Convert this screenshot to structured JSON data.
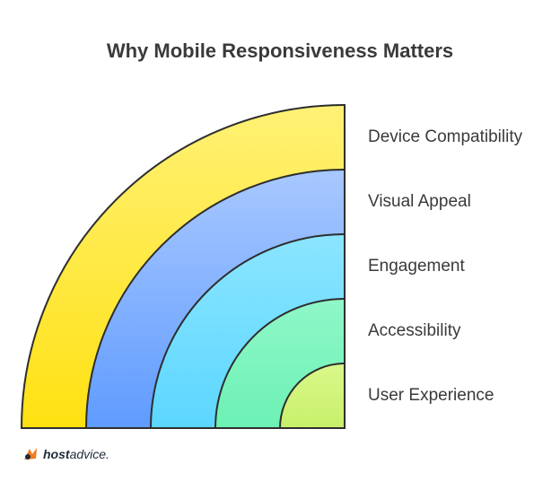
{
  "title": "Why Mobile Responsiveness Matters",
  "layers": [
    {
      "label": "Device Compatibility",
      "color_top": "#fff176",
      "color_bottom": "#ffe111"
    },
    {
      "label": "Visual Appeal",
      "color_top": "#a8c8ff",
      "color_bottom": "#5f9bff"
    },
    {
      "label": "Engagement",
      "color_top": "#8be5ff",
      "color_bottom": "#5cd6ff"
    },
    {
      "label": "Accessibility",
      "color_top": "#8ff7c8",
      "color_bottom": "#6cf1b4"
    },
    {
      "label": "User Experience",
      "color_top": "#d9f88a",
      "color_bottom": "#c8f06a"
    }
  ],
  "brand": {
    "bold": "host",
    "rest": "advice."
  }
}
